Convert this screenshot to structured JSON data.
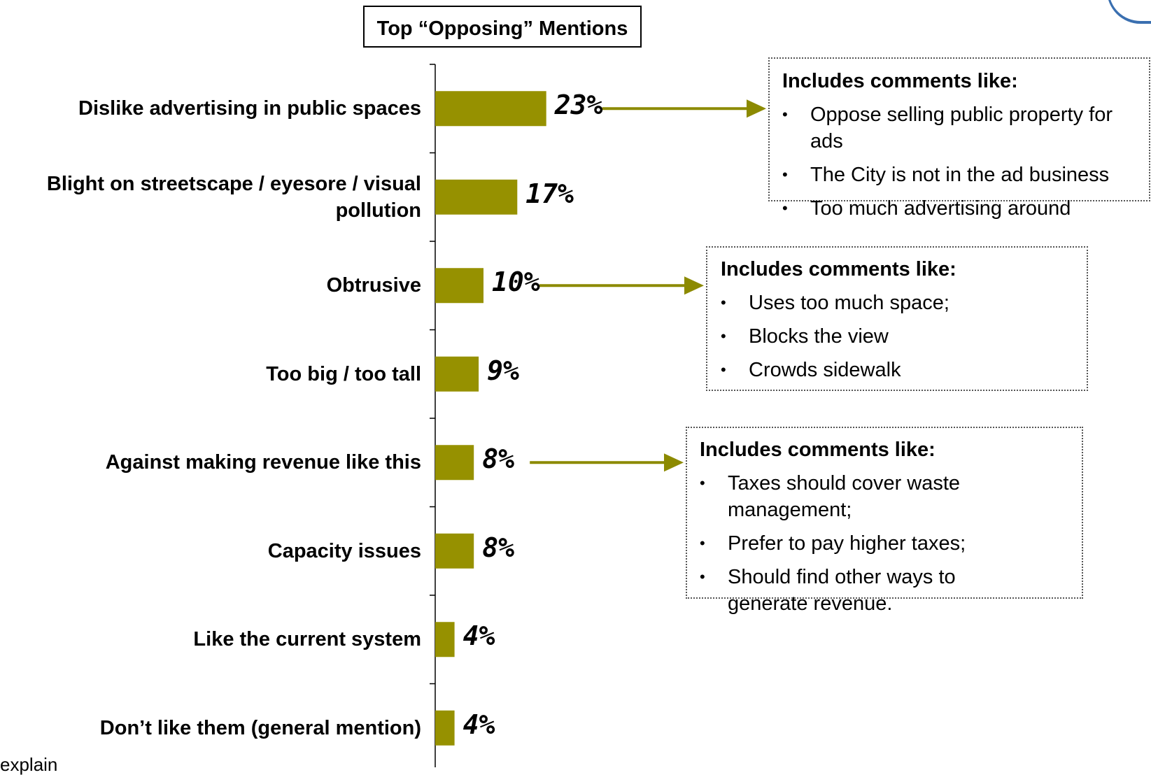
{
  "chart_data": {
    "type": "bar",
    "orientation": "horizontal",
    "title": "Top “Opposing” Mentions",
    "categories": [
      "Dislike advertising in public spaces",
      "Blight on streetscape / eyesore / visual pollution",
      "Obtrusive",
      "Too big / too tall",
      "Against making revenue like this",
      "Capacity issues",
      "Like the current system",
      "Don’t like them (general mention)"
    ],
    "values": [
      23,
      17,
      10,
      9,
      8,
      8,
      4,
      4
    ],
    "value_labels": [
      "23%",
      "17%",
      "10%",
      "9%",
      "8%",
      "8%",
      "4%",
      "4%"
    ],
    "bar_color": "#969100",
    "arrow_color": "#8c8a00"
  },
  "callouts": [
    {
      "heading": "Includes comments like:",
      "items": [
        "Oppose selling public property for ads",
        "The City is not in the ad business",
        "Too much advertising around"
      ]
    },
    {
      "heading": "Includes comments like:",
      "items": [
        "Uses too much space;",
        "Blocks the view",
        "Crowds sidewalk"
      ]
    },
    {
      "heading": "Includes comments like:",
      "items": [
        "Taxes should cover waste management;",
        "Prefer to pay higher taxes;",
        "Should find other ways to generate revenue."
      ]
    }
  ],
  "bullet_symbol": "•",
  "footer_text": "explain"
}
